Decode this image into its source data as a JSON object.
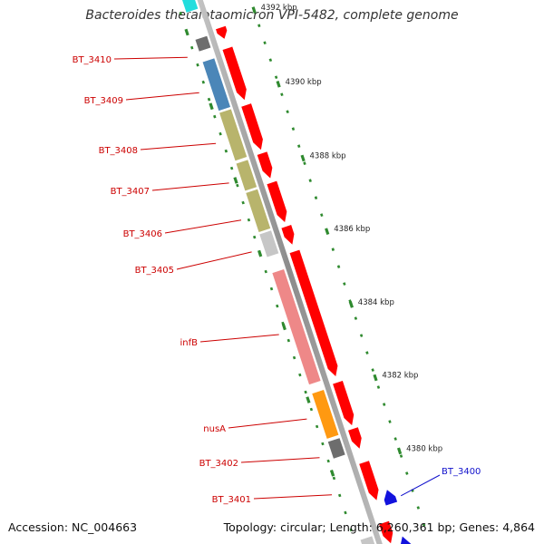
{
  "title": "Bacteroides thetaiotaomicron VPI-5482, complete genome",
  "footer": {
    "accession": "Accession: NC_004663",
    "summary": "Topology: circular; Length: 6,260,361 bp; Genes: 4,864"
  },
  "colors": {
    "backbone": "#9a9a9a",
    "tick": "#2f8a2f",
    "forward_gene": "#ff0000",
    "reverse_gene": "#1212dd",
    "label_forward": "#cc0000",
    "label_reverse": "#1111cc"
  },
  "kbp_labels": [
    "4392 kbp",
    "4390 kbp",
    "4388 kbp",
    "4386 kbp",
    "4384 kbp",
    "4382 kbp",
    "4380 kbp"
  ],
  "gene_labels": [
    {
      "text": "BT_3410",
      "strand": "forward"
    },
    {
      "text": "BT_3409",
      "strand": "forward"
    },
    {
      "text": "BT_3408",
      "strand": "forward"
    },
    {
      "text": "BT_3407",
      "strand": "forward"
    },
    {
      "text": "BT_3406",
      "strand": "forward"
    },
    {
      "text": "BT_3405",
      "strand": "forward"
    },
    {
      "text": "infB",
      "strand": "forward"
    },
    {
      "text": "nusA",
      "strand": "forward"
    },
    {
      "text": "BT_3402",
      "strand": "forward"
    },
    {
      "text": "BT_3401",
      "strand": "forward"
    },
    {
      "text": "BT_3400",
      "strand": "reverse"
    }
  ],
  "cog_colors": {
    "cyan": "#22dddd",
    "gray": "#6d6d6d",
    "blue": "#4b86b8",
    "olive": "#b8b46c",
    "lightgray": "#c6c6c6",
    "pink": "#ee8888",
    "orange": "#ff9911"
  }
}
